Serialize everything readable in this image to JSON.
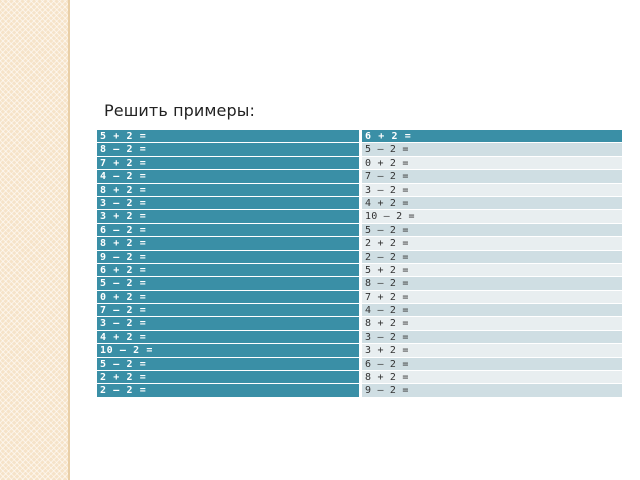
{
  "title": "Решить примеры:",
  "left_column": [
    "5 + 2 =",
    "8 – 2 =",
    "7 + 2 =",
    "4 – 2 =",
    "8 + 2 =",
    "3 – 2 =",
    "3 + 2 =",
    "6 – 2 =",
    "8 + 2 =",
    "9 – 2 =",
    "6 + 2 =",
    "5 – 2 =",
    "0 + 2 =",
    "7 – 2 =",
    "3 – 2 =",
    "4 + 2 =",
    "10 – 2 =",
    "5 – 2 =",
    "2 + 2 =",
    "2 – 2 ="
  ],
  "right_column": [
    "6 + 2 =",
    "5 – 2 =",
    "0 + 2 =",
    "7 – 2 =",
    "3 – 2 =",
    "4 + 2 =",
    "10 – 2 =",
    "5 – 2 =",
    "2 + 2 =",
    "2 – 2 =",
    "5 + 2 =",
    "8 – 2 =",
    "7 + 2 =",
    "4 – 2 =",
    "8 + 2 =",
    "3 – 2 =",
    "3 + 2 =",
    "6 – 2 =",
    "8 + 2 =",
    "9 – 2 ="
  ]
}
